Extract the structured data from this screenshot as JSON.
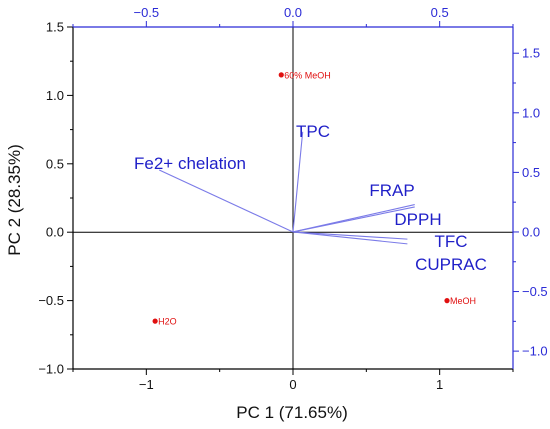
{
  "chart_data": {
    "type": "scatter",
    "subtype": "pca-biplot",
    "title": "",
    "xlabel": "PC 1 (71.65%)",
    "ylabel": "PC 2 (28.35%)",
    "xlim": [
      -1.5,
      1.5
    ],
    "ylim": [
      -1.0,
      1.5
    ],
    "grid": false,
    "zero_lines": true,
    "bottom_axis": {
      "ticks": [
        -1,
        0,
        1
      ],
      "tick_labels": [
        "−1",
        "0",
        "1"
      ]
    },
    "left_axis": {
      "ticks": [
        -1.0,
        -0.5,
        0.0,
        0.5,
        1.0,
        1.5
      ],
      "tick_labels": [
        "−1.0",
        "−0.5",
        "0.0",
        "0.5",
        "1.0",
        "1.5"
      ]
    },
    "top_axis": {
      "xlim": [
        -0.75,
        0.75
      ],
      "ticks": [
        -0.5,
        0.0,
        0.5
      ],
      "tick_labels": [
        "−0.5",
        "0.0",
        "0.5"
      ],
      "color": "#2b2bd6"
    },
    "right_axis": {
      "ylim": [
        -1.15,
        1.72
      ],
      "ticks": [
        -1.0,
        -0.5,
        0.0,
        0.5,
        1.0,
        1.5
      ],
      "tick_labels": [
        "−1.0",
        "−0.5",
        "0.0",
        "0.5",
        "1.0",
        "1.5"
      ],
      "color": "#2b2bd6"
    },
    "scores": [
      {
        "label": "60% MeOH",
        "x": -0.08,
        "y": 1.15
      },
      {
        "label": "H2O",
        "x": -0.94,
        "y": -0.65
      },
      {
        "label": "MeOH",
        "x": 1.05,
        "y": -0.5
      }
    ],
    "score_color": "#e01010",
    "loadings": [
      {
        "label": "TPC",
        "x": 0.033,
        "y": 0.84
      },
      {
        "label": "Fe2+ chelation",
        "x": -0.456,
        "y": 0.52
      },
      {
        "label": "FRAP",
        "x": 0.415,
        "y": 0.23
      },
      {
        "label": "DPPH",
        "x": 0.415,
        "y": 0.21
      },
      {
        "label": "TFC",
        "x": 0.39,
        "y": -0.06
      },
      {
        "label": "CUPRAC",
        "x": 0.39,
        "y": -0.1
      }
    ],
    "loading_color": "#7b7be8",
    "loading_label_color": "#1f1fc8"
  }
}
